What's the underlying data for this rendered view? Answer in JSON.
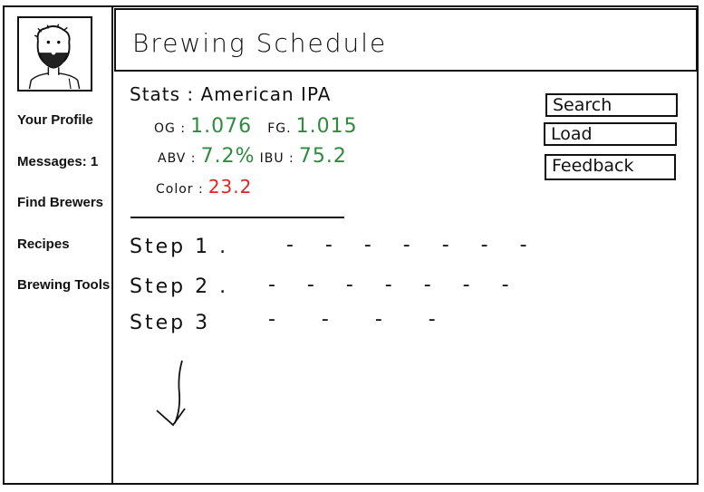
{
  "nav": {
    "items": [
      {
        "label": "Your Profile"
      },
      {
        "label": "Messages: 1"
      },
      {
        "label": "Find Brewers"
      },
      {
        "label": "Recipes"
      },
      {
        "label": "Brewing Tools"
      }
    ]
  },
  "header": {
    "title": "Brewing Schedule"
  },
  "stats": {
    "label": "Stats :",
    "style": "American IPA",
    "og_label": "OG :",
    "og_value": "1.076",
    "fg_label": "FG.",
    "fg_value": "1.015",
    "abv_label": "ABV :",
    "abv_value": "7.2%",
    "ibu_label": "IBU :",
    "ibu_value": "75.2",
    "color_label": "Color :",
    "color_value": "23.2"
  },
  "actions": {
    "search_label": "Search",
    "load_label": "Load",
    "feedback_label": "Feedback"
  },
  "steps": [
    {
      "label": "Step 1 .",
      "dashes": "- - - - - - -"
    },
    {
      "label": "Step 2 .",
      "dashes": "- - - - - - -"
    },
    {
      "label": "Step 3",
      "dashes": "-  -  -  -"
    }
  ],
  "colors": {
    "green": "#2e8b3e",
    "red": "#e02424"
  },
  "icons": {
    "avatar": "bearded-face-avatar",
    "arrow": "down-arrow-icon"
  }
}
